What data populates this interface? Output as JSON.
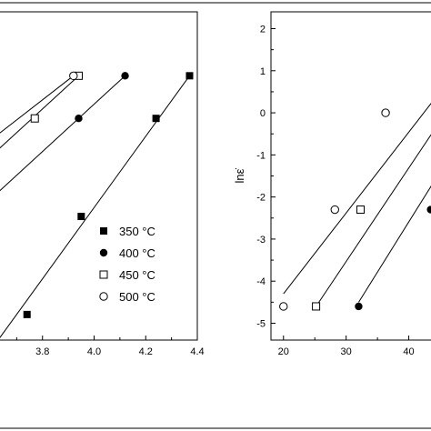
{
  "chart_data": [
    {
      "type": "scatter",
      "panel": "left",
      "xlim": [
        3.6,
        4.4
      ],
      "ylim": [
        -5.2,
        2.5
      ],
      "x_ticks": [
        3.8,
        4.0,
        4.2,
        4.4
      ],
      "x_tick_labels": [
        "3.8",
        "4.0",
        "4.2",
        "4.4"
      ],
      "xlabel": "",
      "ylabel": "",
      "grid": false,
      "legend_position": "right",
      "series": [
        {
          "name": "350 °C",
          "marker": "filled-square",
          "points": [
            [
              3.74,
              -4.6
            ],
            [
              3.95,
              -2.3
            ],
            [
              4.24,
              0.0
            ],
            [
              4.37,
              1.0
            ]
          ],
          "fit": [
            [
              3.58,
              -5.6
            ],
            [
              4.37,
              1.0
            ]
          ]
        },
        {
          "name": "400 °C",
          "marker": "filled-circle",
          "points": [
            [
              3.94,
              0.0
            ],
            [
              4.12,
              1.0
            ]
          ],
          "fit": [
            [
              3.58,
              -2.0
            ],
            [
              4.12,
              1.0
            ]
          ]
        },
        {
          "name": "450 °C",
          "marker": "open-square",
          "points": [
            [
              3.77,
              0.0
            ],
            [
              3.94,
              1.0
            ]
          ],
          "fit": [
            [
              3.58,
              -1.0
            ],
            [
              3.94,
              1.0
            ]
          ]
        },
        {
          "name": "500 °C",
          "marker": "open-circle",
          "points": [
            [
              3.92,
              1.0
            ]
          ],
          "fit": [
            [
              3.58,
              -0.6
            ],
            [
              3.92,
              1.0
            ]
          ]
        }
      ]
    },
    {
      "type": "scatter",
      "panel": "right",
      "xlim": [
        18,
        45
      ],
      "ylim": [
        -5.4,
        2.4
      ],
      "x_ticks": [
        20,
        30,
        40
      ],
      "x_tick_labels": [
        "20",
        "30",
        "40"
      ],
      "y_ticks": [
        2,
        1,
        0,
        -1,
        -2,
        -3,
        -4,
        -5
      ],
      "y_tick_labels": [
        "2",
        "1",
        "0",
        "-1",
        "-2",
        "-3",
        "-4",
        "-5"
      ],
      "xlabel": "",
      "ylabel": "lnε̇",
      "grid": false,
      "series": [
        {
          "marker": "open-circle",
          "points": [
            [
              20.0,
              -4.6
            ],
            [
              28.2,
              -2.3
            ],
            [
              36.3,
              0.0
            ]
          ],
          "fit": [
            [
              20.0,
              -4.3
            ],
            [
              45.0,
              0.5
            ]
          ]
        },
        {
          "marker": "open-square",
          "points": [
            [
              25.2,
              -4.6
            ],
            [
              32.3,
              -2.3
            ]
          ],
          "fit": [
            [
              25.2,
              -4.6
            ],
            [
              45.0,
              -0.2
            ]
          ]
        },
        {
          "marker": "filled-circle",
          "points": [
            [
              32.0,
              -4.6
            ],
            [
              43.5,
              -2.3
            ]
          ],
          "fit": [
            [
              32.0,
              -4.5
            ],
            [
              45.0,
              -1.4
            ]
          ]
        }
      ]
    }
  ]
}
